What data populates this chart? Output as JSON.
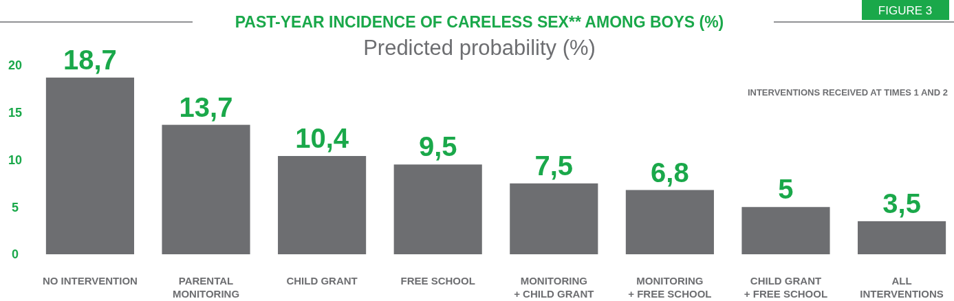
{
  "chart_data": {
    "type": "bar",
    "title": "PAST-YEAR INCIDENCE OF CARELESS SEX** AMONG BOYS (%)",
    "subtitle": "Predicted probability (%)",
    "annotations": [
      "FIGURE 3",
      "INTERVENTIONS RECEIVED AT TIMES 1 AND 2"
    ],
    "categories": [
      "NO INTERVENTION",
      "PARENTAL\nMONITORING",
      "CHILD GRANT",
      "FREE SCHOOL",
      "MONITORING\n+ CHILD GRANT",
      "MONITORING\n+ FREE SCHOOL",
      "CHILD GRANT\n+ FREE SCHOOL",
      "ALL\nINTERVENTIONS"
    ],
    "values": [
      18.7,
      13.7,
      10.4,
      9.5,
      7.5,
      6.8,
      5,
      3.5
    ],
    "value_labels": [
      "18,7",
      "13,7",
      "10,4",
      "9,5",
      "7,5",
      "6,8",
      "5",
      "3,5"
    ],
    "color": "#6d6e71",
    "ylim": [
      0,
      20
    ],
    "yticks": [
      0,
      5,
      10,
      15,
      20
    ],
    "grid": false
  }
}
